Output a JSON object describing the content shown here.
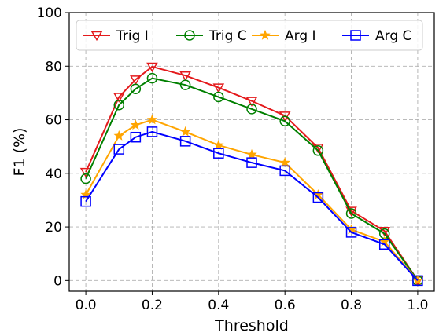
{
  "chart_data": {
    "type": "line",
    "title": "",
    "xlabel": "Threshold",
    "ylabel": "F1 (%)",
    "xlim": [
      -0.05,
      1.05
    ],
    "ylim": [
      -4,
      100
    ],
    "xticks": [
      0.0,
      0.2,
      0.4,
      0.6,
      0.8,
      1.0
    ],
    "xtick_labels": [
      "0.0",
      "0.2",
      "0.4",
      "0.6",
      "0.8",
      "1.0"
    ],
    "yticks": [
      0,
      20,
      40,
      60,
      80,
      100
    ],
    "ytick_labels": [
      "0",
      "20",
      "40",
      "60",
      "80",
      "100"
    ],
    "grid": true,
    "legend_position": "top",
    "x": [
      0.0,
      0.1,
      0.15,
      0.2,
      0.3,
      0.4,
      0.5,
      0.6,
      0.7,
      0.8,
      0.9,
      1.0
    ],
    "series": [
      {
        "name": "Trig I",
        "color": "#e41a1c",
        "marker": "triangle-down",
        "values": [
          40.5,
          68.5,
          75.0,
          79.8,
          76.5,
          72.0,
          67.0,
          61.5,
          49.5,
          26.0,
          18.5,
          0.0
        ]
      },
      {
        "name": "Trig C",
        "color": "#008000",
        "marker": "circle",
        "values": [
          38.0,
          65.5,
          71.5,
          75.5,
          73.0,
          68.5,
          64.0,
          59.5,
          48.5,
          25.0,
          17.5,
          0.0
        ]
      },
      {
        "name": "Arg I",
        "color": "#ffa500",
        "marker": "star",
        "values": [
          32.0,
          54.0,
          58.0,
          60.0,
          55.5,
          50.5,
          47.0,
          44.0,
          32.0,
          19.0,
          14.5,
          0.0
        ]
      },
      {
        "name": "Arg C",
        "color": "#0000ff",
        "marker": "square",
        "values": [
          29.5,
          49.0,
          53.5,
          55.5,
          52.0,
          47.5,
          44.0,
          41.0,
          31.0,
          18.0,
          13.5,
          0.0
        ]
      }
    ]
  }
}
